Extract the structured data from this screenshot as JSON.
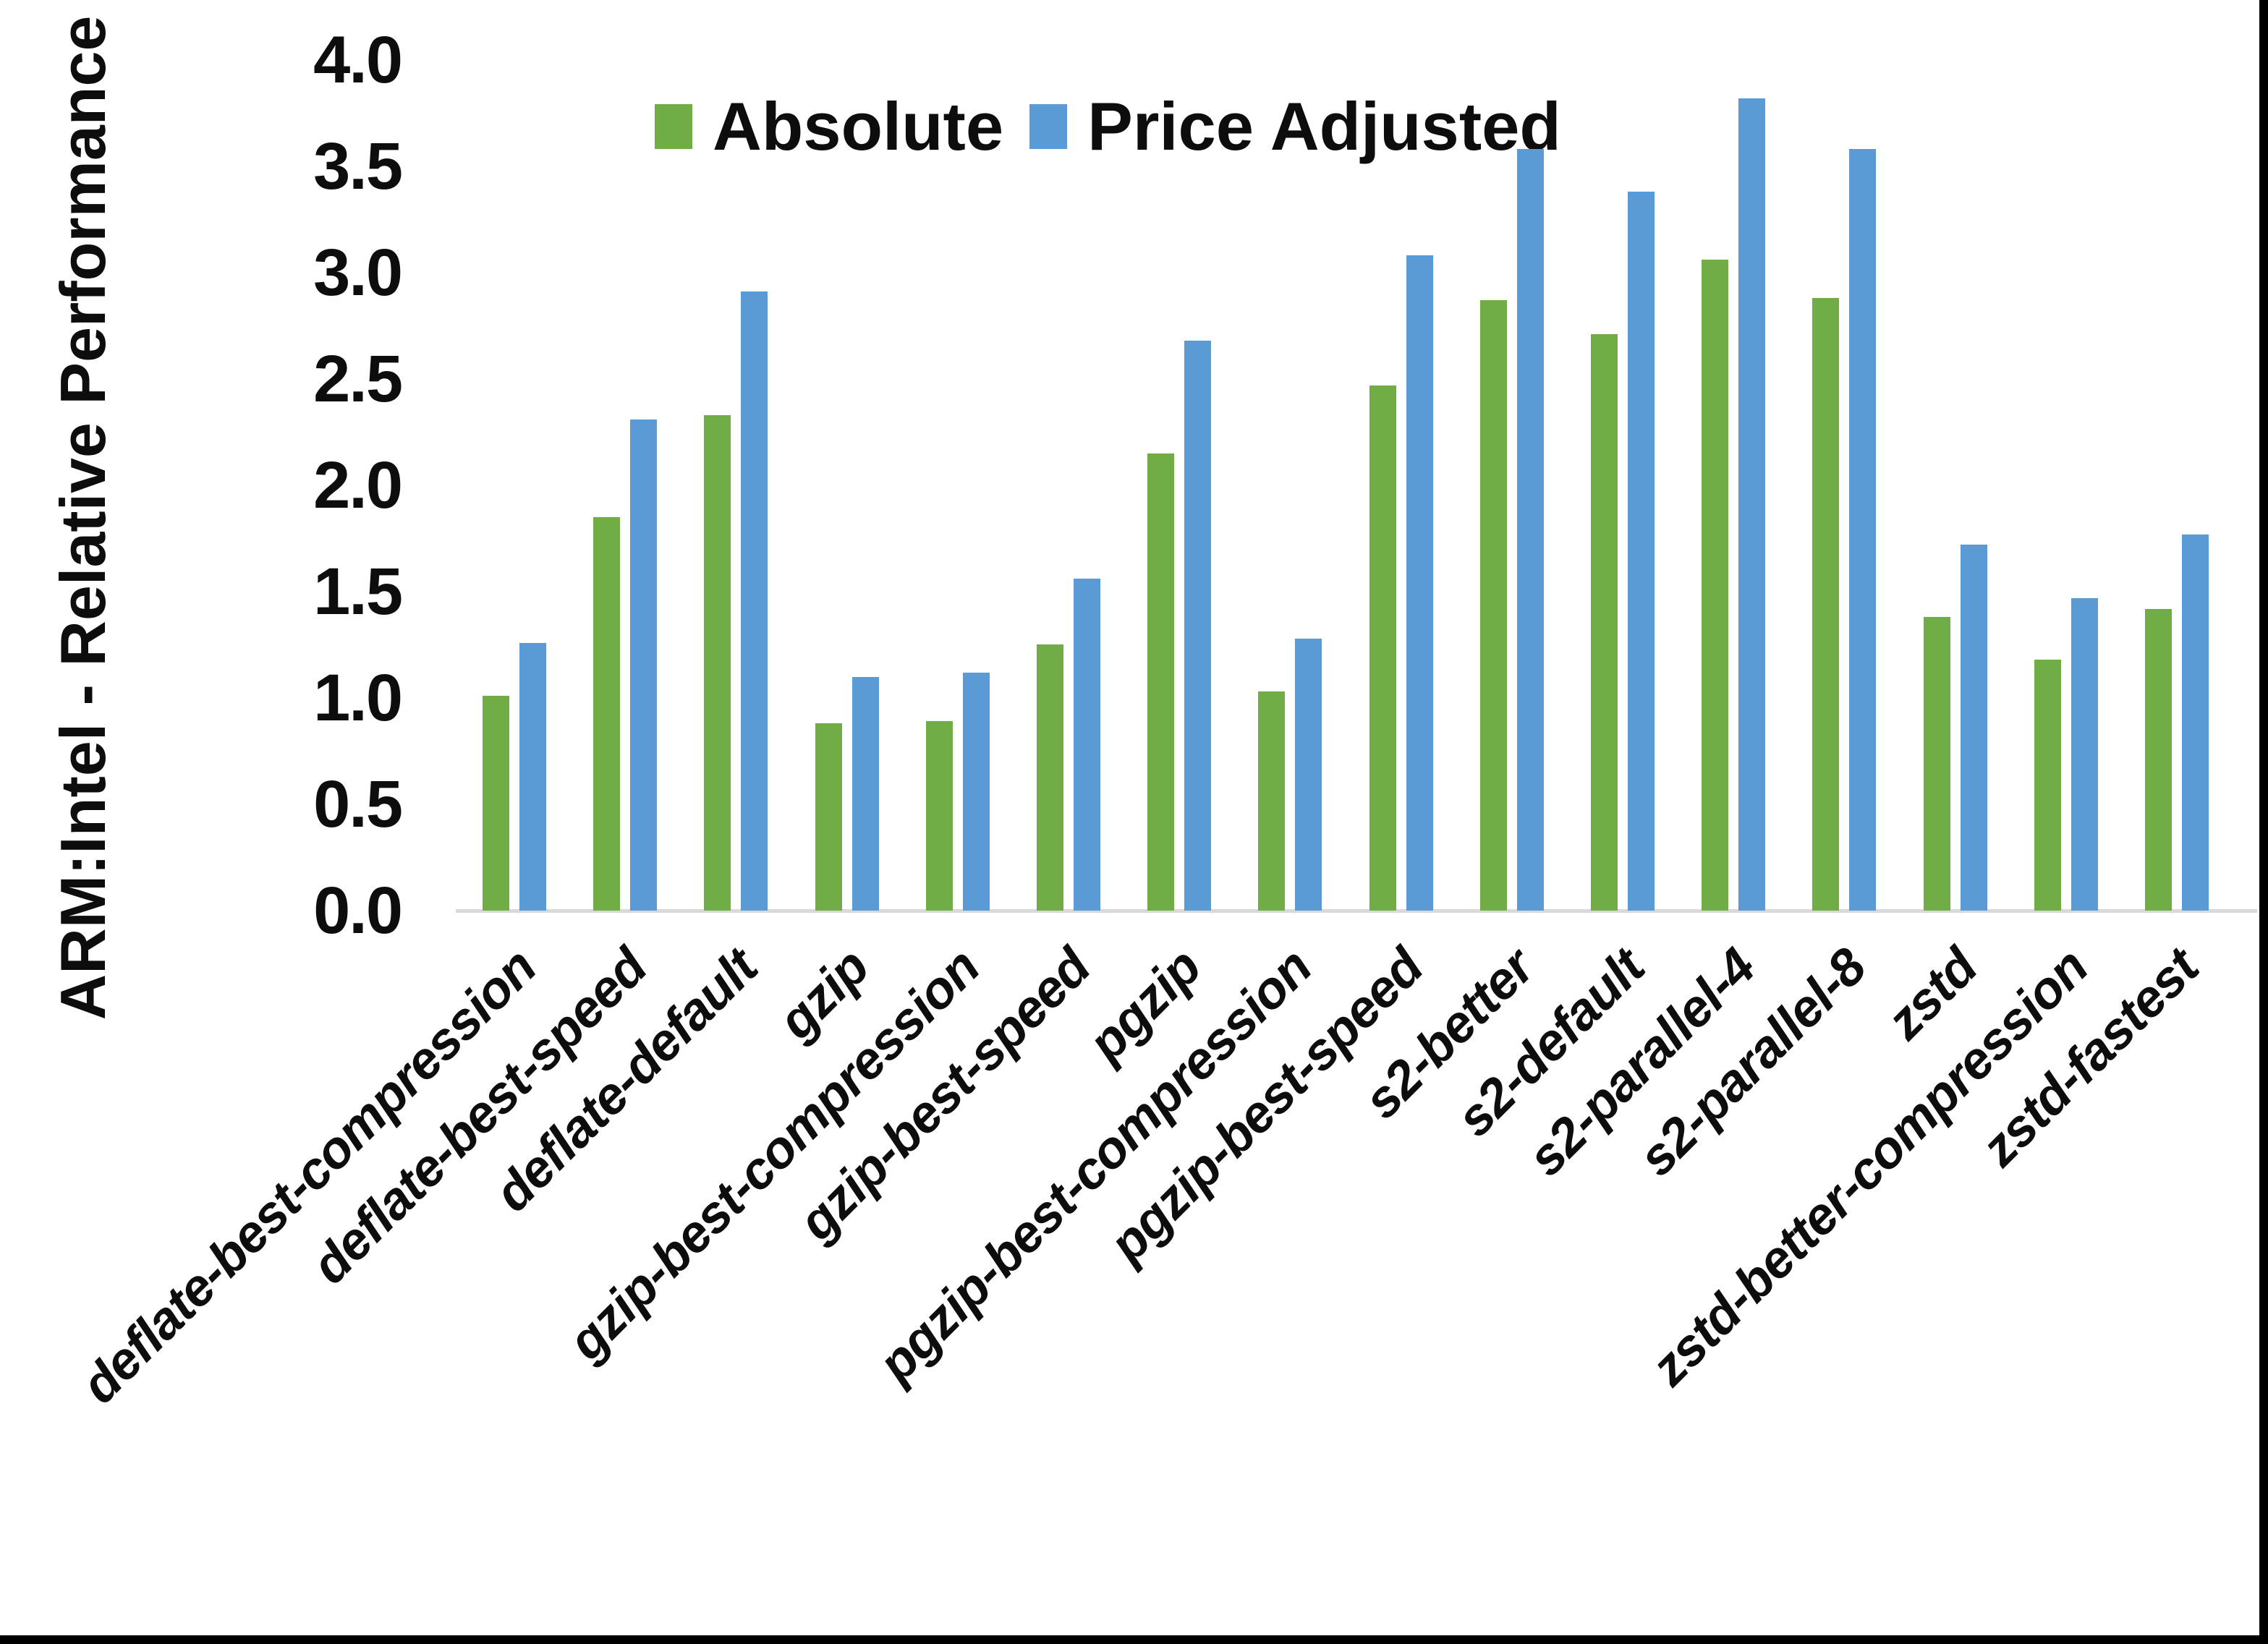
{
  "chart_data": {
    "type": "bar",
    "title": "",
    "xlabel": "",
    "ylabel": "ARM:Intel - Relative Performance",
    "ylim": [
      0.0,
      4.0
    ],
    "ytick_interval": 0.5,
    "ytick_labels": [
      "0.0",
      "0.5",
      "1.0",
      "1.5",
      "2.0",
      "2.5",
      "3.0",
      "3.5",
      "4.0"
    ],
    "grid": false,
    "legend_position": "top-center",
    "categories": [
      "deflate-best-compression",
      "deflate-best-speed",
      "deflate-default",
      "gzip",
      "gzip-best-compression",
      "gzip-best-speed",
      "pgzip",
      "pgzip-best-compression",
      "pgzip-best-speed",
      "s2-better",
      "s2-default",
      "s2-parallel-4",
      "s2-parallel-8",
      "zstd",
      "zstd-better-compression",
      "zstd-fastest"
    ],
    "series": [
      {
        "name": "Absolute",
        "color": "#70AD47",
        "values": [
          1.01,
          1.85,
          2.33,
          0.88,
          0.89,
          1.25,
          2.15,
          1.03,
          2.47,
          2.87,
          2.71,
          3.06,
          2.88,
          1.38,
          1.18,
          1.42
        ]
      },
      {
        "name": "Price Adjusted",
        "color": "#5B9BD5",
        "values": [
          1.26,
          2.31,
          2.91,
          1.1,
          1.12,
          1.56,
          2.68,
          1.28,
          3.08,
          3.58,
          3.38,
          3.82,
          3.58,
          1.72,
          1.47,
          1.77
        ]
      }
    ]
  },
  "legend": {
    "items": [
      {
        "label": "Absolute",
        "color": "#70AD47"
      },
      {
        "label": "Price Adjusted",
        "color": "#5B9BD5"
      }
    ]
  },
  "colors": {
    "background": "#FFFFFF",
    "axis_line": "#D9D9D9",
    "frame_border": "#000000",
    "text": "#0D0D0D"
  }
}
